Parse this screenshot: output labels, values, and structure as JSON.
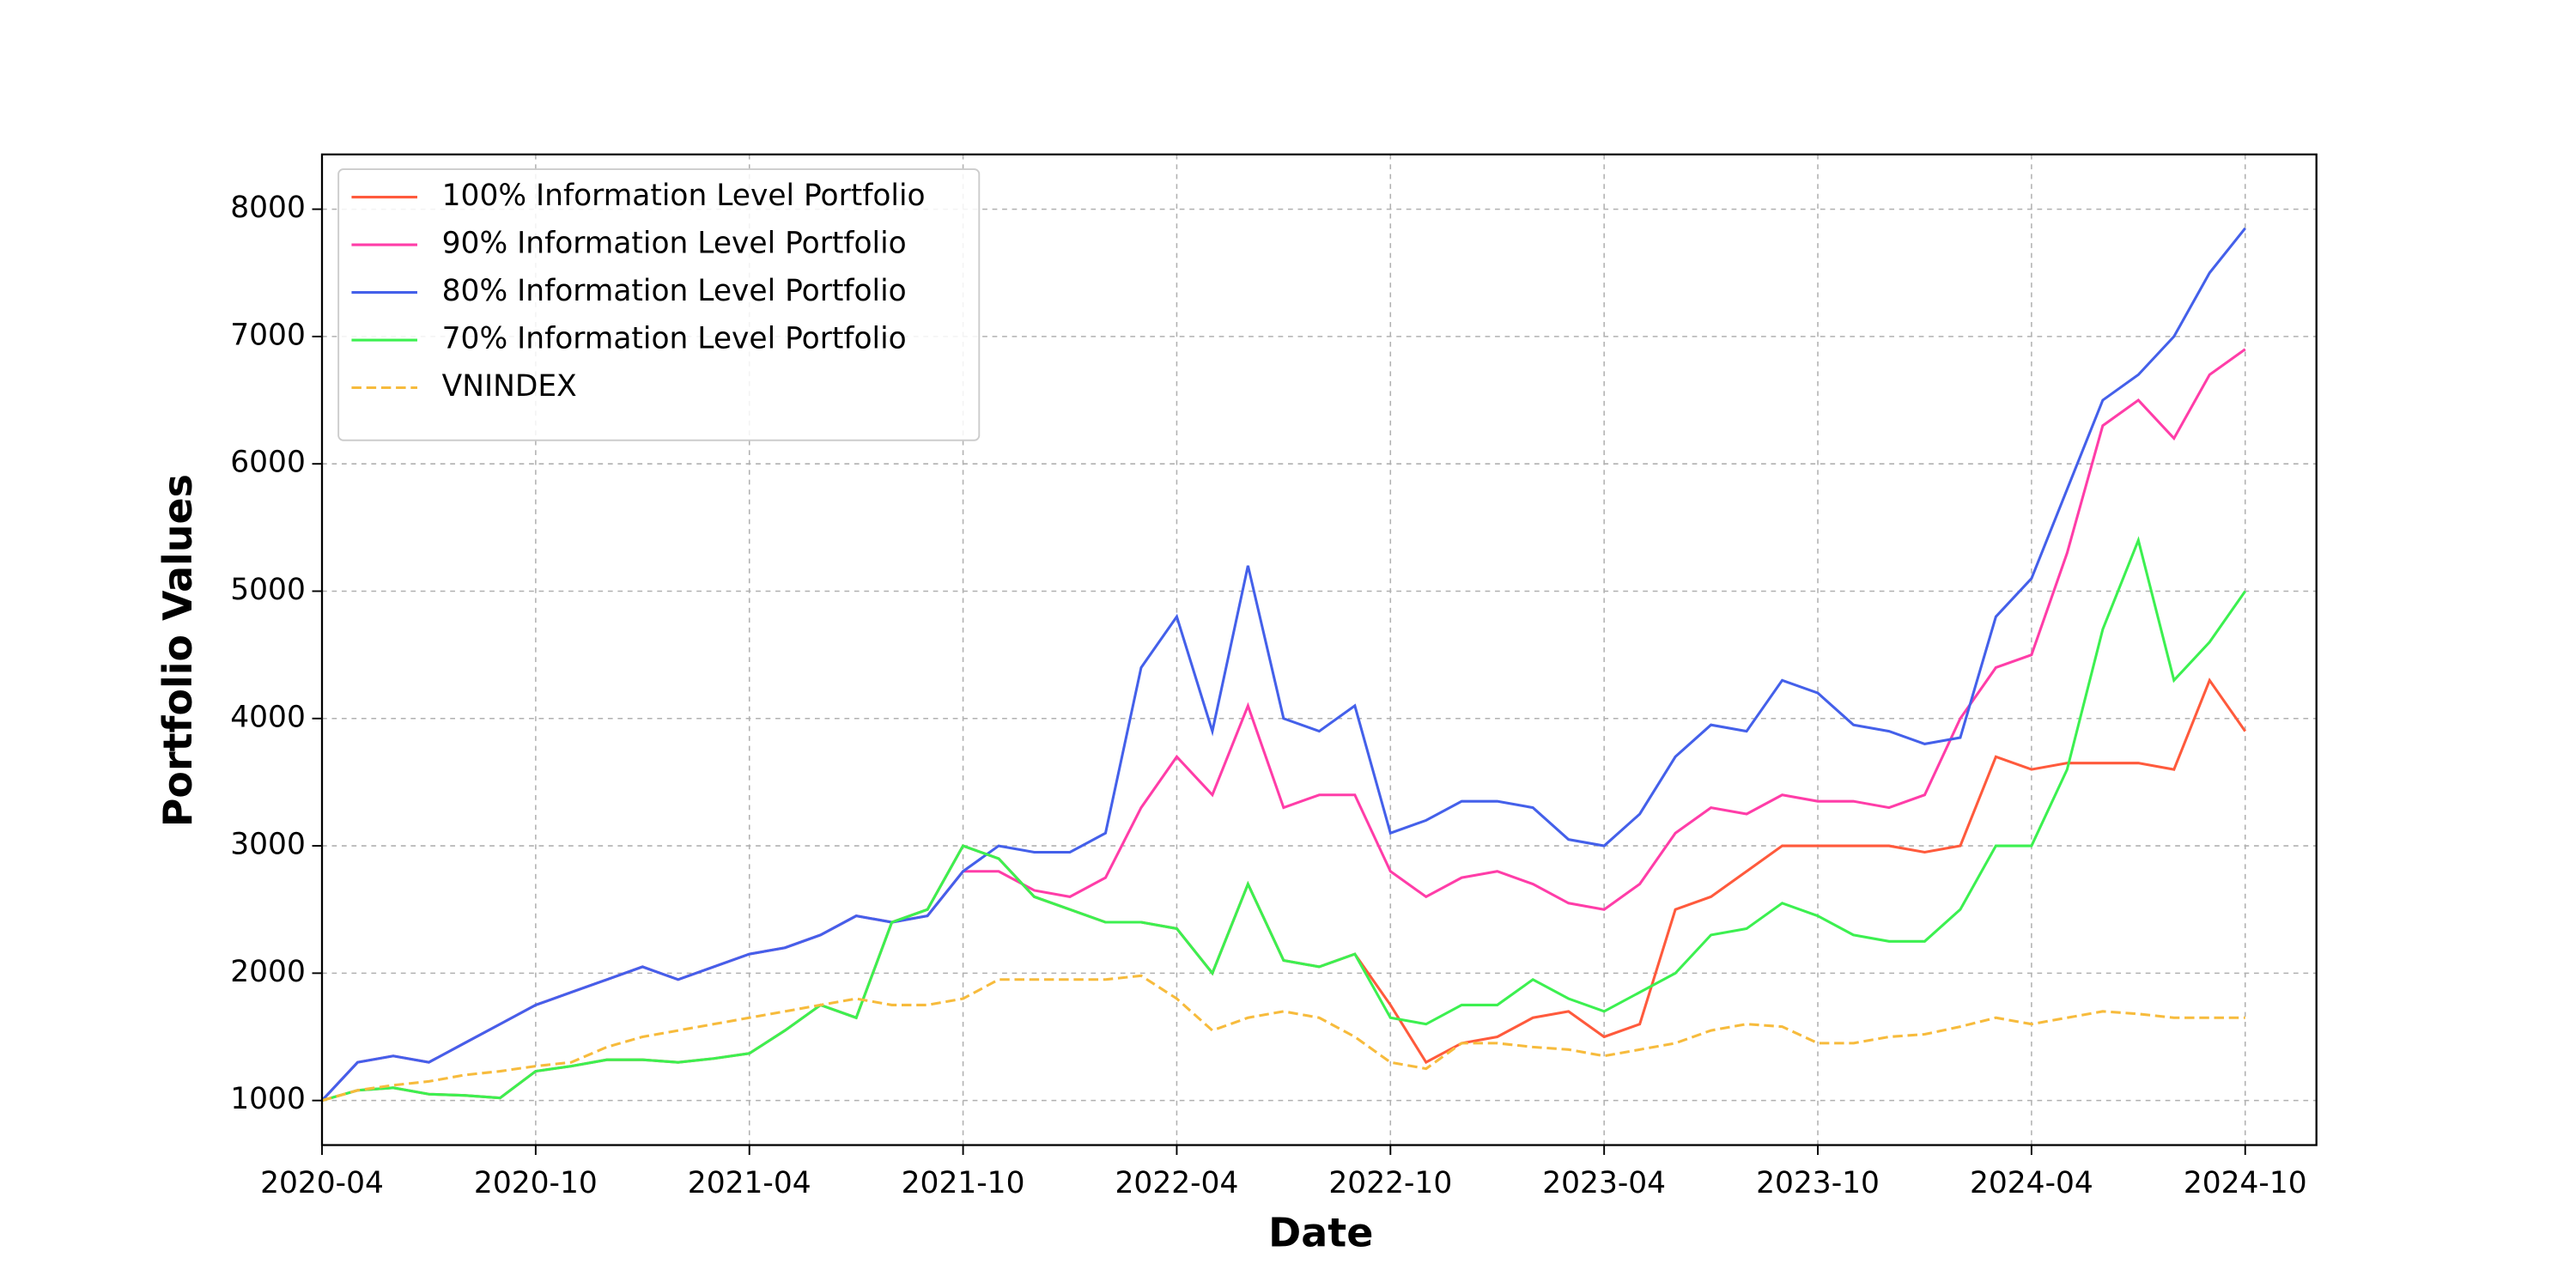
{
  "chart_data": {
    "type": "line",
    "xlabel": "Date",
    "ylabel": "Portfolio Values",
    "x": [
      "2020-04",
      "2020-05",
      "2020-06",
      "2020-07",
      "2020-08",
      "2020-09",
      "2020-10",
      "2020-11",
      "2020-12",
      "2021-01",
      "2021-02",
      "2021-03",
      "2021-04",
      "2021-05",
      "2021-06",
      "2021-07",
      "2021-08",
      "2021-09",
      "2021-10",
      "2021-11",
      "2021-12",
      "2022-01",
      "2022-02",
      "2022-03",
      "2022-04",
      "2022-05",
      "2022-06",
      "2022-07",
      "2022-08",
      "2022-09",
      "2022-10",
      "2022-11",
      "2022-12",
      "2023-01",
      "2023-02",
      "2023-03",
      "2023-04",
      "2023-05",
      "2023-06",
      "2023-07",
      "2023-08",
      "2023-09",
      "2023-10",
      "2023-11",
      "2023-12",
      "2024-01",
      "2024-02",
      "2024-03",
      "2024-04",
      "2024-05",
      "2024-06",
      "2024-07",
      "2024-08",
      "2024-09",
      "2024-10"
    ],
    "series": [
      {
        "name": "100% Information Level Portfolio",
        "color": "#ff5a3c",
        "linestyle": "solid",
        "values": [
          1000,
          1080,
          1100,
          1050,
          1040,
          1020,
          1230,
          1270,
          1320,
          1320,
          1300,
          1330,
          1370,
          1550,
          1750,
          1650,
          2400,
          2500,
          3000,
          2900,
          2600,
          2500,
          2400,
          2400,
          2350,
          2000,
          2700,
          2100,
          2050,
          2150,
          1750,
          1300,
          1450,
          1500,
          1650,
          1700,
          1500,
          1600,
          2500,
          2600,
          2800,
          3000,
          3000,
          3000,
          3000,
          2950,
          3000,
          3700,
          3600,
          3650,
          3650,
          3650,
          3600,
          4300,
          3900
        ]
      },
      {
        "name": "90% Information Level Portfolio",
        "color": "#ff3da8",
        "linestyle": "solid",
        "values": [
          1000,
          1300,
          1350,
          1300,
          1450,
          1600,
          1750,
          1850,
          1950,
          2050,
          1950,
          2050,
          2150,
          2200,
          2300,
          2450,
          2400,
          2450,
          2800,
          2800,
          2650,
          2600,
          2750,
          3300,
          3700,
          3400,
          4100,
          3300,
          3400,
          3400,
          2800,
          2600,
          2750,
          2800,
          2700,
          2550,
          2500,
          2700,
          3100,
          3300,
          3250,
          3400,
          3350,
          3350,
          3300,
          3400,
          4000,
          4400,
          4500,
          5300,
          6300,
          6500,
          6200,
          6700,
          6900
        ]
      },
      {
        "name": "80% Information Level Portfolio",
        "color": "#4460ea",
        "linestyle": "solid",
        "values": [
          1000,
          1300,
          1350,
          1300,
          1450,
          1600,
          1750,
          1850,
          1950,
          2050,
          1950,
          2050,
          2150,
          2200,
          2300,
          2450,
          2400,
          2450,
          2800,
          3000,
          2950,
          2950,
          3100,
          4400,
          4800,
          3900,
          5200,
          4000,
          3900,
          4100,
          3100,
          3200,
          3350,
          3350,
          3300,
          3050,
          3000,
          3250,
          3700,
          3950,
          3900,
          4300,
          4200,
          3950,
          3900,
          3800,
          3850,
          4800,
          5100,
          5800,
          6500,
          6700,
          7000,
          7500,
          7850
        ]
      },
      {
        "name": "70% Information Level Portfolio",
        "color": "#3cf050",
        "linestyle": "solid",
        "values": [
          1000,
          1080,
          1100,
          1050,
          1040,
          1020,
          1230,
          1270,
          1320,
          1320,
          1300,
          1330,
          1370,
          1550,
          1750,
          1650,
          2400,
          2500,
          3000,
          2900,
          2600,
          2500,
          2400,
          2400,
          2350,
          2000,
          2700,
          2100,
          2050,
          2150,
          1650,
          1600,
          1750,
          1750,
          1950,
          1800,
          1700,
          1850,
          2000,
          2300,
          2350,
          2550,
          2450,
          2300,
          2250,
          2250,
          2500,
          3000,
          3000,
          3600,
          4700,
          5400,
          4300,
          4600,
          5000
        ]
      },
      {
        "name": "VNINDEX",
        "color": "#f7bb3c",
        "linestyle": "dashed",
        "values": [
          1000,
          1080,
          1120,
          1150,
          1200,
          1230,
          1270,
          1300,
          1420,
          1500,
          1550,
          1600,
          1650,
          1700,
          1750,
          1800,
          1750,
          1750,
          1800,
          1950,
          1950,
          1950,
          1950,
          1980,
          1800,
          1550,
          1650,
          1700,
          1650,
          1500,
          1300,
          1250,
          1450,
          1450,
          1420,
          1400,
          1350,
          1400,
          1450,
          1550,
          1600,
          1580,
          1450,
          1450,
          1500,
          1520,
          1580,
          1650,
          1600,
          1650,
          1700,
          1680,
          1650,
          1650,
          1650
        ]
      }
    ],
    "xlim": [
      "2020-04",
      "2024-12"
    ],
    "xticks": [
      "2020-04",
      "2020-10",
      "2021-04",
      "2021-10",
      "2022-04",
      "2022-10",
      "2023-04",
      "2023-10",
      "2024-04",
      "2024-10"
    ],
    "ylim": [
      650,
      8430
    ],
    "yticks": [
      1000,
      2000,
      3000,
      4000,
      5000,
      6000,
      7000,
      8000
    ],
    "grid": true,
    "legend": "upper left"
  }
}
